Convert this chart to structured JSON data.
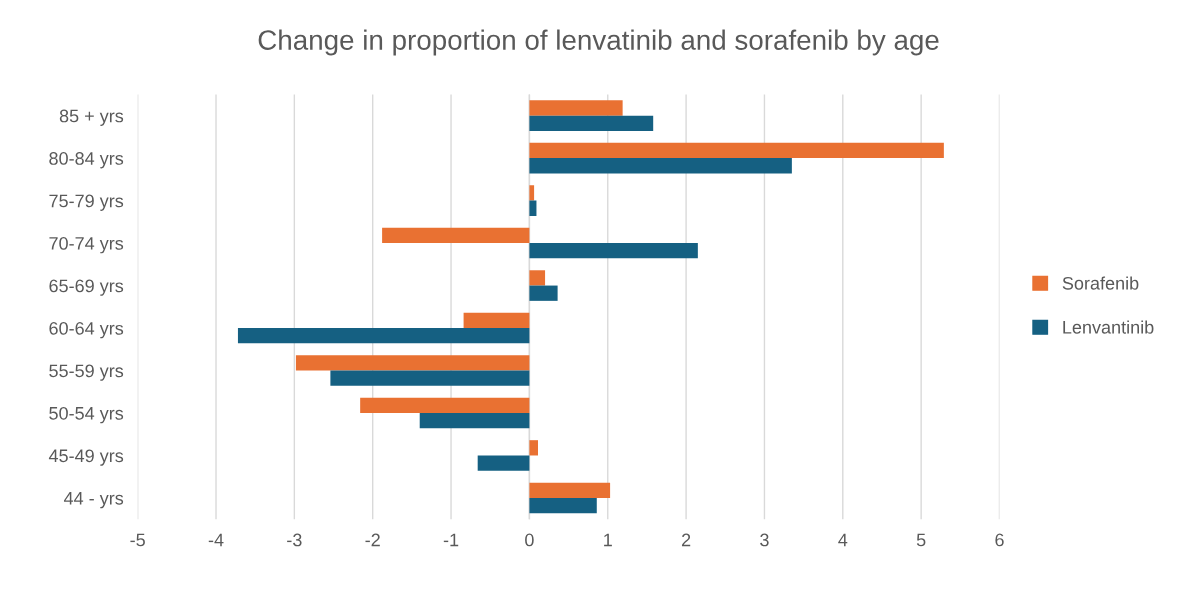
{
  "chart_data": {
    "type": "bar",
    "orientation": "horizontal",
    "title": "Change in proportion of lenvatinib and sorafenib by age",
    "categories": [
      "85 + yrs",
      "80-84 yrs",
      "75-79 yrs",
      "70-74 yrs",
      "65-69 yrs",
      "60-64 yrs",
      "55-59 yrs",
      "50-54 yrs",
      "45-49 yrs",
      "44 - yrs"
    ],
    "series": [
      {
        "name": "Sorafenib",
        "color": "#e97132",
        "values": [
          1.19,
          5.29,
          0.06,
          -1.88,
          0.2,
          -0.84,
          -2.98,
          -2.16,
          0.11,
          1.03
        ]
      },
      {
        "name": "Lenvantinib",
        "color": "#156082",
        "values": [
          1.58,
          3.35,
          0.09,
          2.15,
          0.36,
          -3.72,
          -2.54,
          -1.4,
          -0.66,
          0.86
        ]
      }
    ],
    "xlim": [
      -5,
      6
    ],
    "xticks": [
      -5,
      -4,
      -3,
      -2,
      -1,
      0,
      1,
      2,
      3,
      4,
      5,
      6
    ],
    "grid": "x",
    "legend": "right"
  }
}
